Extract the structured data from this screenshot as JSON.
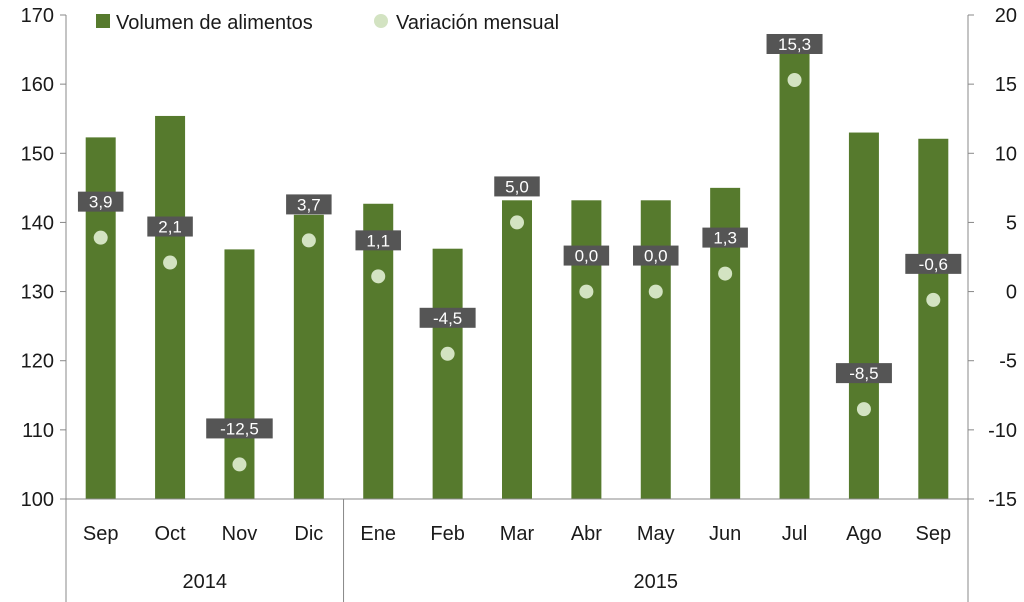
{
  "chart_data": {
    "type": "bar",
    "categories": [
      "Sep",
      "Oct",
      "Nov",
      "Dic",
      "Ene",
      "Feb",
      "Mar",
      "Abr",
      "May",
      "Jun",
      "Jul",
      "Ago",
      "Sep"
    ],
    "groups": [
      {
        "label": "2014",
        "count": 4
      },
      {
        "label": "2015",
        "count": 9
      }
    ],
    "series": [
      {
        "name": "Volumen de alimentos",
        "type": "bar",
        "axis": "left",
        "color": "#567a2d",
        "values": [
          152.3,
          155.4,
          136.1,
          141.1,
          142.7,
          136.2,
          143.2,
          143.2,
          143.2,
          145.0,
          167.2,
          153.0,
          152.1
        ]
      },
      {
        "name": "Variación mensual",
        "type": "scatter",
        "axis": "right",
        "color": "#d3e3c2",
        "values": [
          3.9,
          2.1,
          -12.5,
          3.7,
          1.1,
          -4.5,
          5.0,
          0.0,
          0.0,
          1.3,
          15.3,
          -8.5,
          -0.6
        ],
        "labels": [
          "3,9",
          "2,1",
          "-12,5",
          "3,7",
          "1,1",
          "-4,5",
          "5,0",
          "0,0",
          "0,0",
          "1,3",
          "15,3",
          "-8,5",
          "-0,6"
        ]
      }
    ],
    "y_left": {
      "min": 100,
      "max": 170,
      "ticks": [
        "100",
        "110",
        "120",
        "130",
        "140",
        "150",
        "160",
        "170"
      ]
    },
    "y_right": {
      "min": -15,
      "max": 20,
      "ticks": [
        "-15",
        "-10",
        "-5",
        "0",
        "5",
        "10",
        "15",
        "20"
      ]
    },
    "data_label_color": "#555555",
    "data_label_text_color": "#ffffff",
    "grid": false,
    "legend": "top-left"
  }
}
